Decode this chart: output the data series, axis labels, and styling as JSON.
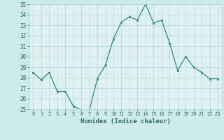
{
  "x": [
    0,
    1,
    2,
    3,
    4,
    5,
    6,
    7,
    8,
    9,
    10,
    11,
    12,
    13,
    14,
    15,
    16,
    17,
    18,
    19,
    20,
    21,
    22,
    23
  ],
  "y": [
    28.5,
    27.8,
    28.5,
    26.7,
    26.7,
    25.3,
    24.9,
    24.9,
    27.9,
    29.2,
    31.7,
    33.3,
    33.8,
    33.5,
    35.0,
    33.2,
    33.5,
    31.3,
    28.7,
    30.0,
    29.0,
    28.5,
    27.9,
    27.9
  ],
  "xlabel": "Humidex (Indice chaleur)",
  "ylim": [
    25,
    35
  ],
  "xlim": [
    -0.5,
    23.5
  ],
  "yticks": [
    25,
    26,
    27,
    28,
    29,
    30,
    31,
    32,
    33,
    34,
    35
  ],
  "xticks": [
    0,
    1,
    2,
    3,
    4,
    5,
    6,
    7,
    8,
    9,
    10,
    11,
    12,
    13,
    14,
    15,
    16,
    17,
    18,
    19,
    20,
    21,
    22,
    23
  ],
  "line_color": "#2e8b7a",
  "marker_color": "#2e8b7a",
  "bg_color": "#cdeaea",
  "grid_color": "#b0d8d8",
  "axes_bg": "#dff0f0",
  "label_color": "#2e6b6b",
  "tick_color": "#2e6b6b"
}
